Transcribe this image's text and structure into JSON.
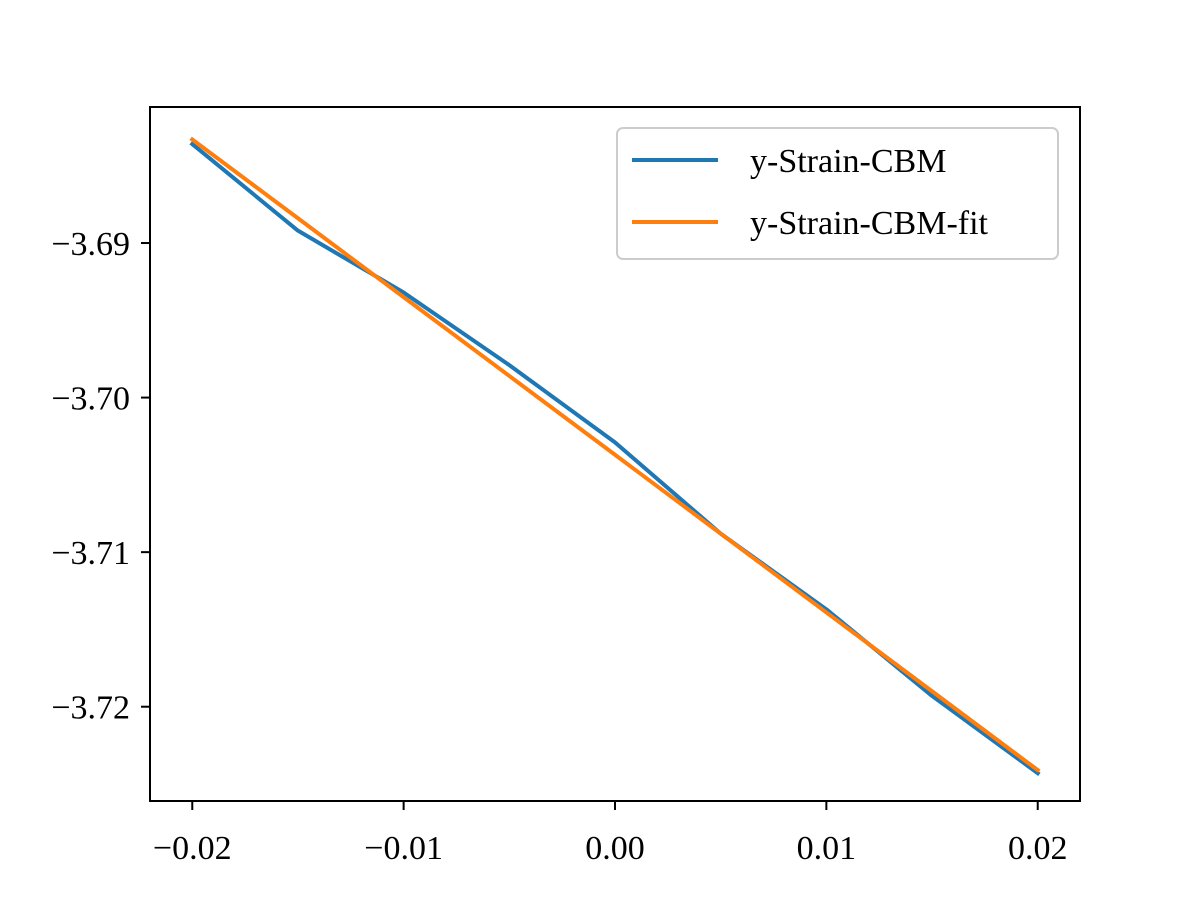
{
  "chart_data": {
    "type": "line",
    "title": "",
    "xlabel": "",
    "ylabel": "",
    "xlim": [
      -0.022,
      0.022
    ],
    "ylim": [
      -3.7261,
      -3.6812
    ],
    "grid": false,
    "legend_position": "top-right",
    "x_ticks": [
      -0.02,
      -0.01,
      0.0,
      0.01,
      0.02
    ],
    "x_tick_labels": [
      "−0.02",
      "−0.01",
      "0.00",
      "0.01",
      "0.02"
    ],
    "y_ticks": [
      -3.69,
      -3.7,
      -3.71,
      -3.72
    ],
    "y_tick_labels": [
      "−3.69",
      "−3.70",
      "−3.71",
      "−3.72"
    ],
    "series": [
      {
        "name": "y-Strain-CBM",
        "color": "#1f77b4",
        "x": [
          -0.02,
          -0.015,
          -0.01,
          -0.005,
          0.0,
          0.005,
          0.01,
          0.015,
          0.02
        ],
        "y": [
          -3.6836,
          -3.6892,
          -3.6932,
          -3.6979,
          -3.7029,
          -3.7088,
          -3.7137,
          -3.7193,
          -3.7243
        ]
      },
      {
        "name": "y-Strain-CBM-fit",
        "color": "#ff7f0e",
        "x": [
          -0.02,
          -0.015,
          -0.01,
          -0.005,
          0.0,
          0.005,
          0.01,
          0.015,
          0.02
        ],
        "y": [
          -3.6833,
          -3.6884,
          -3.6935,
          -3.6986,
          -3.7037,
          -3.7088,
          -3.7139,
          -3.719,
          -3.7241
        ]
      }
    ]
  }
}
